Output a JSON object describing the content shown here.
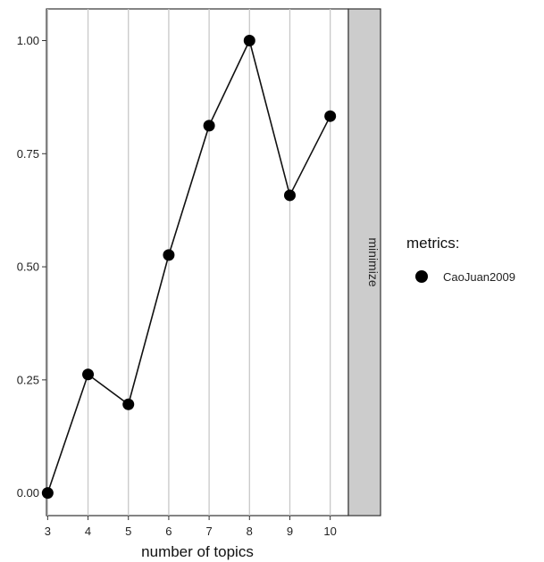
{
  "chart_data": {
    "type": "line",
    "x": [
      3,
      4,
      5,
      6,
      7,
      8,
      9,
      10
    ],
    "series": [
      {
        "name": "CaoJuan2009",
        "values": [
          0.0,
          0.262,
          0.196,
          0.526,
          0.812,
          1.0,
          0.658,
          0.833
        ]
      }
    ],
    "xlabel": "number of topics",
    "ylabel": "",
    "xticks": [
      "3",
      "4",
      "5",
      "6",
      "7",
      "8",
      "9",
      "10"
    ],
    "yticks": [
      "0.00",
      "0.25",
      "0.50",
      "0.75",
      "1.00"
    ],
    "ytick_values": [
      0,
      0.25,
      0.5,
      0.75,
      1.0
    ],
    "xlim": [
      2.97,
      10.45
    ],
    "ylim": [
      -0.05,
      1.07
    ],
    "grid": "vertical",
    "facet_label": "minimize",
    "legend": {
      "title": "metrics:",
      "position": "right"
    },
    "colors": {
      "line": "#111111",
      "point": "#000000",
      "grid": "#c8c8c8",
      "strip": "#cccccc",
      "border": "#333333"
    }
  }
}
